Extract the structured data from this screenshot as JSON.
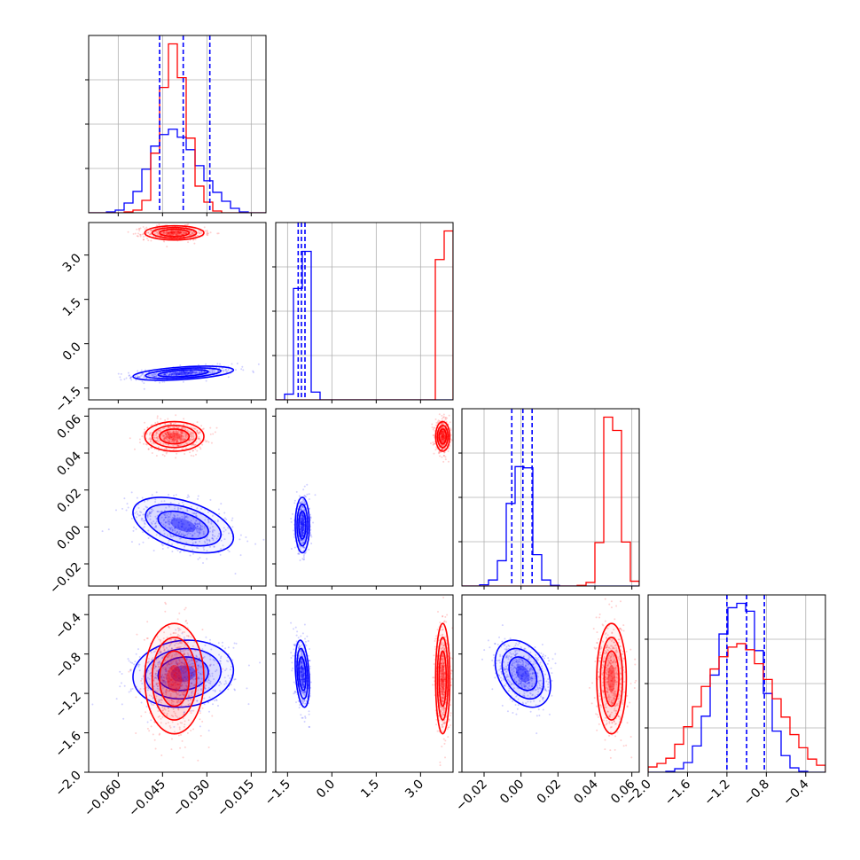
{
  "colors": {
    "series_a": "#0000ff",
    "series_b": "#ff0000",
    "grid": "#b0b0b0",
    "frame": "#000000"
  },
  "chart_data": {
    "type": "corner",
    "grid": true,
    "series": [
      {
        "color": "#0000ff",
        "means": [
          -0.038,
          -1.0,
          0.001,
          -1.0
        ],
        "sds": [
          0.0085,
          0.12,
          0.0075,
          0.17
        ],
        "corr": [
          [
            1,
            0.45,
            -0.45,
            0.1
          ],
          [
            0.45,
            1,
            0,
            -0.3
          ],
          [
            -0.45,
            0,
            1,
            -0.35
          ],
          [
            0.1,
            -0.3,
            -0.35,
            1
          ]
        ]
      },
      {
        "color": "#ff0000",
        "means": [
          -0.041,
          3.75,
          0.049,
          -1.05
        ],
        "sds": [
          0.005,
          0.12,
          0.004,
          0.28
        ],
        "corr": [
          [
            1,
            0,
            0,
            0
          ],
          [
            0,
            1,
            0,
            0
          ],
          [
            0,
            0,
            1,
            0
          ],
          [
            0,
            0,
            0,
            1
          ]
        ]
      }
    ],
    "quantiles_shown_for": "blue series",
    "quantiles": [
      [
        -0.046,
        -0.038,
        -0.029
      ],
      [
        -1.14,
        -1.03,
        -0.91
      ],
      [
        -0.005,
        0.001,
        0.006
      ],
      [
        -1.2,
        -1.0,
        -0.82
      ]
    ],
    "ranges": [
      [
        -0.07,
        -0.01
      ],
      [
        -1.9,
        4.1
      ],
      [
        -0.032,
        0.064
      ],
      [
        -2.0,
        -0.2
      ]
    ],
    "ticks": [
      [
        -0.06,
        -0.045,
        -0.03,
        -0.015
      ],
      [
        -1.5,
        0.0,
        1.5,
        3.0
      ],
      [
        -0.02,
        0.0,
        0.02,
        0.04,
        0.06
      ],
      [
        -2.0,
        -1.6,
        -1.2,
        -0.8,
        -0.4
      ]
    ],
    "tick_labels": [
      [
        "−0.060",
        "−0.045",
        "−0.030",
        "−0.015"
      ],
      [
        "−1.5",
        "0.0",
        "1.5",
        "3.0"
      ],
      [
        "−0.02",
        "0.00",
        "0.02",
        "0.04",
        "0.06"
      ],
      [
        "−2.0",
        "−1.6",
        "−1.2",
        "−0.8",
        "−0.4"
      ]
    ],
    "histograms": [
      {
        "bin_edges": [
          -0.07,
          -0.067,
          -0.064,
          -0.061,
          -0.058,
          -0.055,
          -0.052,
          -0.049,
          -0.046,
          -0.043,
          -0.04,
          -0.037,
          -0.034,
          -0.031,
          -0.028,
          -0.025,
          -0.022,
          -0.019,
          -0.016,
          -0.013,
          -0.01
        ],
        "blue": [
          0,
          0,
          1,
          3,
          11,
          24,
          49,
          75,
          88,
          94,
          85,
          71,
          53,
          36,
          23,
          13,
          5,
          1,
          0,
          0
        ],
        "red": [
          0,
          0,
          0,
          0,
          1,
          3,
          14,
          67,
          141,
          190,
          152,
          84,
          30,
          12,
          2,
          0,
          0,
          0,
          0,
          0
        ]
      },
      {
        "bin_edges": [
          -1.9,
          -1.6,
          -1.3,
          -1.0,
          -0.7,
          -0.4,
          -0.1,
          0.2,
          0.5,
          0.8,
          1.1,
          1.4,
          1.7,
          2.0,
          2.3,
          2.6,
          2.9,
          3.2,
          3.5,
          3.8,
          4.1
        ],
        "blue": [
          0,
          14,
          273,
          364,
          19,
          0,
          0,
          0,
          0,
          0,
          0,
          0,
          0,
          0,
          0,
          0,
          0,
          0,
          0,
          0
        ],
        "red": [
          0,
          0,
          0,
          0,
          0,
          0,
          0,
          0,
          0,
          0,
          0,
          0,
          0,
          0,
          0,
          0,
          0,
          0,
          344,
          414
        ]
      },
      {
        "bin_edges": [
          -0.032,
          -0.0272,
          -0.0224,
          -0.0176,
          -0.0128,
          -0.008,
          -0.0032,
          0.0016,
          0.0064,
          0.0112,
          0.016,
          0.0208,
          0.0256,
          0.0304,
          0.0352,
          0.04,
          0.0448,
          0.0496,
          0.0544,
          0.0592,
          0.064
        ],
        "blue": [
          0,
          0,
          2,
          10,
          42,
          137,
          198,
          196,
          52,
          10,
          1,
          0,
          0,
          0,
          0,
          0,
          0,
          0,
          0,
          0
        ],
        "red": [
          0,
          0,
          0,
          0,
          0,
          0,
          0,
          0,
          0,
          0,
          0,
          0,
          0,
          1,
          6,
          72,
          280,
          258,
          73,
          8
        ]
      },
      {
        "bin_edges": [
          -2.0,
          -1.91,
          -1.82,
          -1.73,
          -1.64,
          -1.55,
          -1.46,
          -1.37,
          -1.28,
          -1.19,
          -1.1,
          -1.01,
          -0.92,
          -0.83,
          -0.74,
          -0.65,
          -0.56,
          -0.47,
          -0.38,
          -0.29,
          -0.2
        ],
        "blue": [
          0,
          0,
          1,
          4,
          11,
          30,
          64,
          111,
          158,
          188,
          193,
          184,
          139,
          90,
          47,
          19,
          5,
          1,
          0,
          0
        ],
        "red": [
          6,
          10,
          16,
          32,
          52,
          75,
          98,
          118,
          132,
          143,
          147,
          140,
          124,
          106,
          84,
          63,
          43,
          28,
          15,
          8
        ]
      }
    ]
  }
}
